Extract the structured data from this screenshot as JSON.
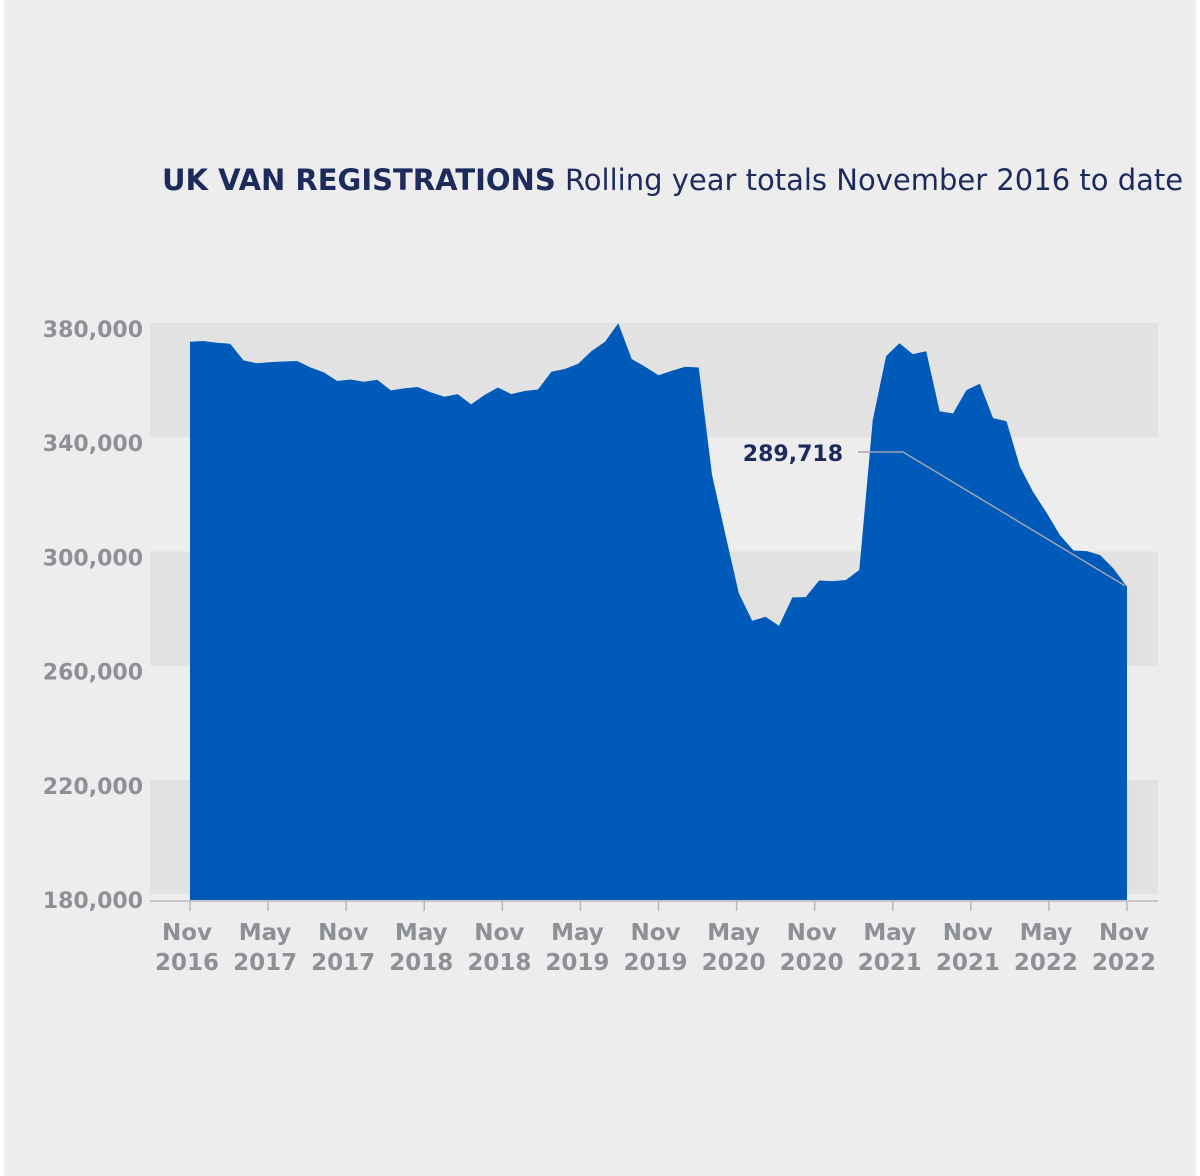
{
  "title": {
    "bold": "UK VAN REGISTRATIONS",
    "rest": "Rolling year totals November 2016 to date"
  },
  "colors": {
    "area": "#005ab9",
    "band": "#e2e2e2",
    "axis_text": "#8e9097",
    "title": "#1c2a5c"
  },
  "chart_data": {
    "type": "area",
    "title": "UK VAN REGISTRATIONS Rolling year totals November 2016 to date",
    "ylim": [
      180000,
      380000
    ],
    "y_ticks": [
      {
        "value": 380000,
        "label": "380,000"
      },
      {
        "value": 340000,
        "label": "340,000"
      },
      {
        "value": 300000,
        "label": "300,000"
      },
      {
        "value": 260000,
        "label": "260,000"
      },
      {
        "value": 220000,
        "label": "220,000"
      },
      {
        "value": 180000,
        "label": "180,000"
      }
    ],
    "x_ticks": [
      {
        "index": 0,
        "line1": "Nov",
        "line2": "2016"
      },
      {
        "index": 6,
        "line1": "May",
        "line2": "2017"
      },
      {
        "index": 12,
        "line1": "Nov",
        "line2": "2017"
      },
      {
        "index": 18,
        "line1": "May",
        "line2": "2018"
      },
      {
        "index": 24,
        "line1": "Nov",
        "line2": "2018"
      },
      {
        "index": 30,
        "line1": "May",
        "line2": "2019"
      },
      {
        "index": 36,
        "line1": "Nov",
        "line2": "2019"
      },
      {
        "index": 42,
        "line1": "May",
        "line2": "2020"
      },
      {
        "index": 48,
        "line1": "Nov",
        "line2": "2020"
      },
      {
        "index": 54,
        "line1": "May",
        "line2": "2021"
      },
      {
        "index": 60,
        "line1": "Nov",
        "line2": "2021"
      },
      {
        "index": 66,
        "line1": "May",
        "line2": "2022"
      },
      {
        "index": 72,
        "line1": "Nov",
        "line2": "2022"
      }
    ],
    "x_start": "Nov 2016",
    "x_end": "Nov 2022",
    "grid_bands": true,
    "values": [
      375500,
      375800,
      375200,
      374800,
      369000,
      368000,
      368400,
      368600,
      368800,
      366500,
      364800,
      361800,
      362300,
      361500,
      362200,
      358500,
      359200,
      359700,
      357800,
      356300,
      357200,
      353600,
      356900,
      359500,
      357200,
      358300,
      358800,
      365000,
      366000,
      367800,
      372300,
      375500,
      382000,
      369500,
      366800,
      363800,
      365400,
      366800,
      366500,
      329000,
      308000,
      287500,
      277800,
      279200,
      276000,
      286000,
      286100,
      291900,
      291700,
      292100,
      295600,
      348000,
      370500,
      375000,
      371200,
      372200,
      351200,
      350400,
      358600,
      360800,
      348800,
      347700,
      331800,
      322800,
      315600,
      307700,
      302400,
      302200,
      300800,
      296000,
      289718
    ],
    "annotation": {
      "label": "289,718",
      "value": 289718
    }
  }
}
